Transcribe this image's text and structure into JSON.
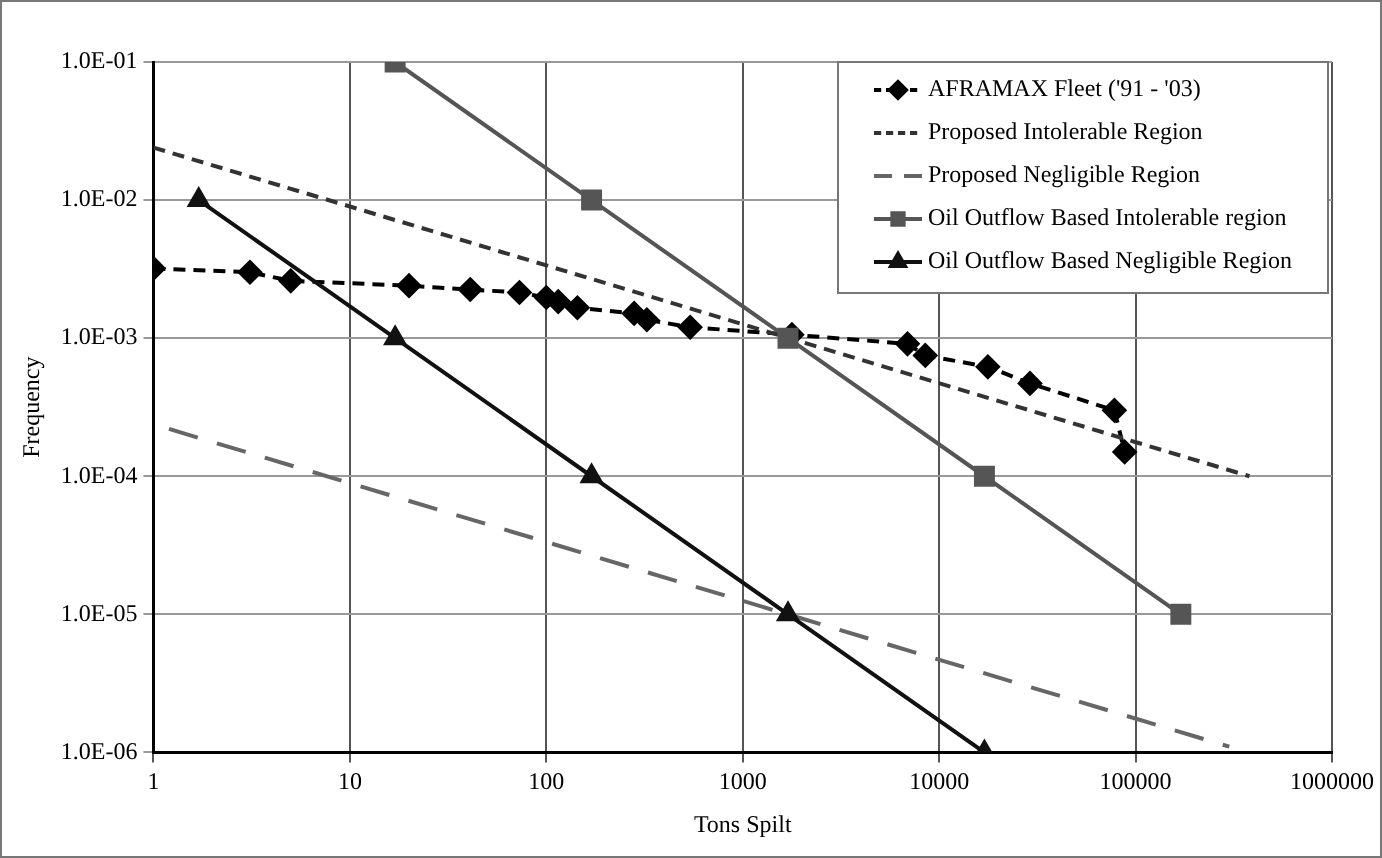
{
  "chart_data": {
    "type": "line",
    "xlabel": "Tons Spilt",
    "ylabel": "Frequency",
    "log": "xy",
    "grid": true,
    "legend": "top right",
    "xlim": [
      1,
      1000000
    ],
    "xticks": [
      1,
      10,
      100,
      1000,
      10000,
      100000,
      1000000
    ],
    "ylim": [
      1e-06,
      0.1
    ],
    "yticks": [
      {
        "value": 1e-06,
        "label": "1.0E-06"
      },
      {
        "value": 1e-05,
        "label": "1.0E-05"
      },
      {
        "value": 0.0001,
        "label": "1.0E-04"
      },
      {
        "value": 0.001,
        "label": "1.0E-03"
      },
      {
        "value": 0.01,
        "label": "1.0E-02"
      },
      {
        "value": 0.1,
        "label": "1.0E-01"
      }
    ],
    "series": [
      {
        "name": "AFRAMAX Fleet ('91 - '03)",
        "color": "#000000",
        "marker": "diamond",
        "line_style": "dashed",
        "x": [
          1,
          3.1,
          5,
          20,
          41,
          73,
          100,
          115,
          144,
          280,
          325,
          540,
          1780,
          6900,
          8500,
          17700,
          29000,
          78000,
          88000
        ],
        "values": [
          0.0032,
          0.003,
          0.0026,
          0.0024,
          0.00225,
          0.00214,
          0.00197,
          0.00184,
          0.00166,
          0.00151,
          0.00136,
          0.0012,
          0.00106,
          0.00091,
          0.00075,
          0.00062,
          0.00047,
          0.0003,
          0.00015
        ]
      },
      {
        "name": "Proposed Intolerable Region",
        "color": "#333333",
        "marker": "none",
        "line_style": "dashed",
        "x": [
          1,
          380000
        ],
        "values": [
          0.024,
          0.0001
        ]
      },
      {
        "name": "Proposed Negligible Region",
        "color": "#666666",
        "marker": "none",
        "line_style": "dashed",
        "x": [
          1.2,
          300000
        ],
        "values": [
          0.00022,
          1.1e-06
        ]
      },
      {
        "name": "Oil Outflow Based Intolerable region",
        "color": "#555555",
        "marker": "square",
        "line_style": "solid",
        "x": [
          17,
          170,
          1700,
          17000,
          170000
        ],
        "values": [
          0.1,
          0.01,
          0.001,
          0.0001,
          1e-05
        ]
      },
      {
        "name": "Oil Outflow Based Negligible Region",
        "color": "#111111",
        "marker": "triangle",
        "line_style": "solid",
        "x": [
          1.7,
          17,
          170,
          1700,
          17000
        ],
        "values": [
          0.01,
          0.001,
          0.0001,
          1e-05,
          1e-06
        ]
      }
    ]
  }
}
